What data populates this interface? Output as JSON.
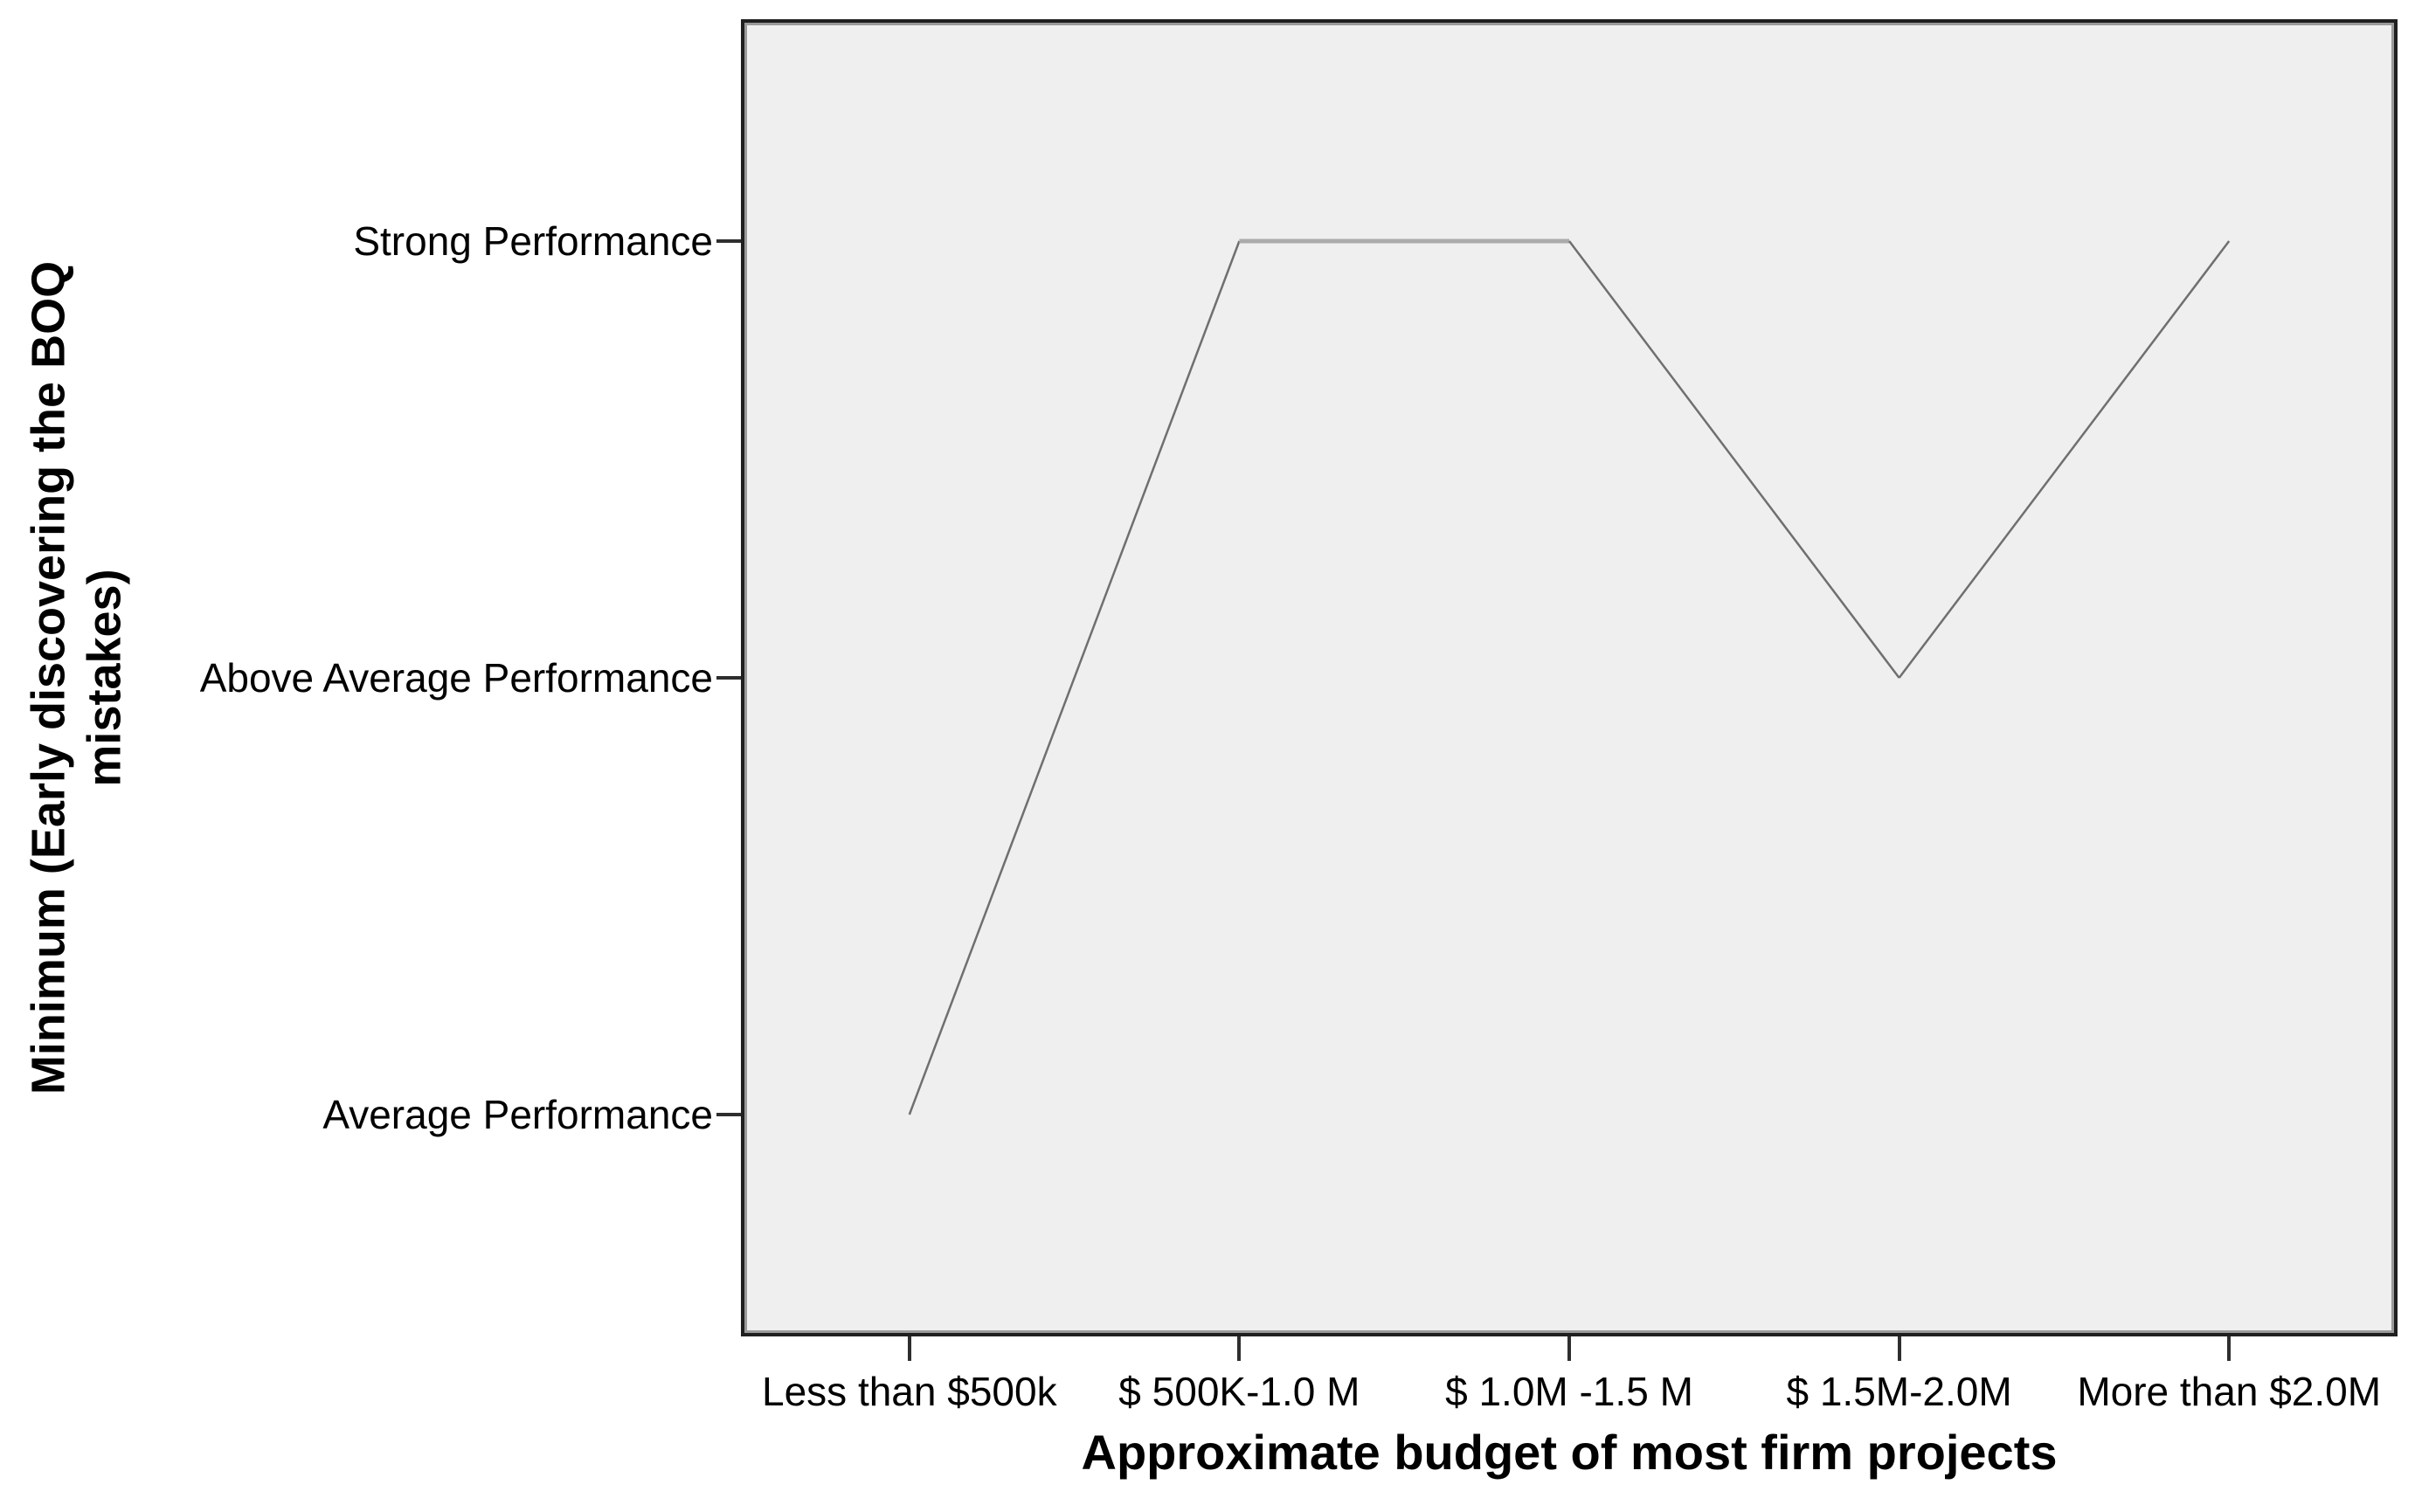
{
  "chart_data": {
    "type": "line",
    "title": "",
    "xlabel": "Approximate budget of most firm projects",
    "ylabel": "Minimum (Early discovering the BOQ mistakes)",
    "ylabel_lines": [
      "Minimum (Early discovering the BOQ",
      "mistakes)"
    ],
    "categories": [
      "Less than $500k",
      "$ 500K-1.0 M",
      "$ 1.0M -1.5 M",
      "$ 1.5M-2.0M",
      "More than $2.0M"
    ],
    "y_ticks": [
      "Average Performance",
      "Above Average Performance",
      "Strong Performance"
    ],
    "series": [
      {
        "name": "Minimum (Early discovering the BOQ mistakes)",
        "values": [
          1,
          3,
          3,
          2,
          3
        ],
        "value_labels": [
          "Average Performance",
          "Strong Performance",
          "Strong Performance",
          "Above Average Performance",
          "Strong Performance"
        ]
      }
    ],
    "y_scale": {
      "1": "Average Performance",
      "2": "Above Average Performance",
      "3": "Strong Performance"
    },
    "grid": false,
    "legend_position": "none",
    "colors": {
      "plot_background": "#efefef",
      "frame": "#1f1f1f",
      "frame_inner_bevel": "#9a9a9a",
      "line_diagonal": "#6f6f6f",
      "line_horizontal": "#ababab",
      "tick": "#2e2e2e",
      "text": "#000000"
    }
  }
}
